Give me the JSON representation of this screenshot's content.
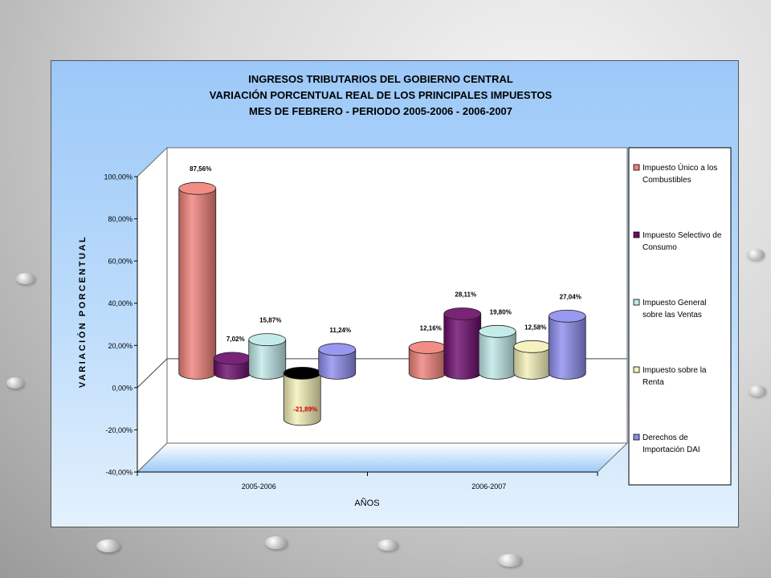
{
  "chart_data": {
    "type": "bar",
    "title_lines": [
      "INGRESOS TRIBUTARIOS DEL GOBIERNO CENTRAL",
      "VARIACIÓN PORCENTUAL REAL DE LOS PRINCIPALES IMPUESTOS",
      "MES DE FEBRERO - PERIODO  2005-2006 - 2006-2007"
    ],
    "xlabel": "AÑOS",
    "ylabel": "VARIACIÓN PORCENTUAL",
    "categories": [
      "2005-2006",
      "2006-2007"
    ],
    "ylim": [
      -40,
      100
    ],
    "yticks": [
      {
        "value": 100,
        "label": "100,00%"
      },
      {
        "value": 80,
        "label": "80,00%"
      },
      {
        "value": 60,
        "label": "60,00%"
      },
      {
        "value": 40,
        "label": "40,00%"
      },
      {
        "value": 20,
        "label": "20,00%"
      },
      {
        "value": 0,
        "label": "0,00%"
      },
      {
        "value": -20,
        "label": "-20,00%"
      },
      {
        "value": -40,
        "label": "-40,00%"
      }
    ],
    "legend_position": "right",
    "series": [
      {
        "name": "Impuesto Único a los Combustibles",
        "legend_lines": [
          "Impuesto Único a los",
          "Combustibles"
        ],
        "color": "#f08078",
        "values": [
          87.56,
          12.16
        ],
        "labels": [
          "87,56%",
          "12,16%"
        ]
      },
      {
        "name": "Impuesto Selectivo de Consumo",
        "legend_lines": [
          "Impuesto Selectivo de",
          "Consumo"
        ],
        "color": "#6a0a6a",
        "values": [
          7.02,
          28.11
        ],
        "labels": [
          "7,02%",
          "28,11%"
        ]
      },
      {
        "name": "Impuesto General sobre las Ventas",
        "legend_lines": [
          "Impuesto General",
          "sobre las Ventas"
        ],
        "color": "#bfe8e8",
        "values": [
          15.87,
          19.8
        ],
        "labels": [
          "15,87%",
          "19,80%"
        ]
      },
      {
        "name": "Impuesto sobre la Renta",
        "legend_lines": [
          "Impuesto sobre la",
          "Renta"
        ],
        "color": "#f4f0b8",
        "values": [
          -21.89,
          12.58
        ],
        "labels": [
          "-21,89%",
          "12,58%"
        ]
      },
      {
        "name": "Derechos de Importación DAI",
        "legend_lines": [
          "Derechos de",
          "Importación DAI"
        ],
        "color": "#8c8cee",
        "values": [
          11.24,
          27.04
        ],
        "labels": [
          "11,24%",
          "27,04%"
        ]
      }
    ],
    "negative_label_color": "#cc0000",
    "grid": false
  }
}
